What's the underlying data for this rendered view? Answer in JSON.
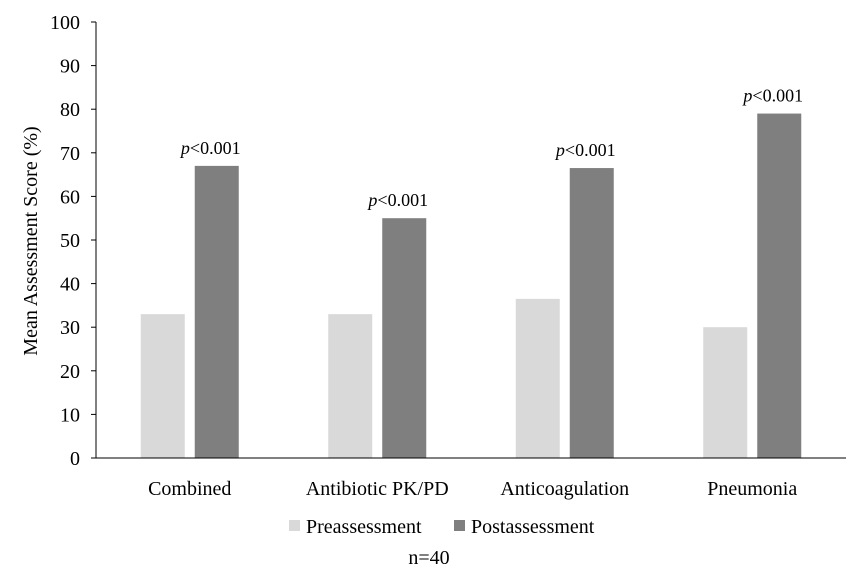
{
  "chart_data": {
    "type": "bar",
    "title": "",
    "xlabel": "",
    "ylabel": "Mean Assessment Score (%)",
    "ylim": [
      0,
      100
    ],
    "yticks": [
      0,
      10,
      20,
      30,
      40,
      50,
      60,
      70,
      80,
      90,
      100
    ],
    "categories": [
      "Combined",
      "Antibiotic PK/PD",
      "Anticoagulation",
      "Pneumonia"
    ],
    "series": [
      {
        "name": "Preassessment",
        "color": "#d9d9d9",
        "values": [
          33,
          33,
          36.5,
          30
        ]
      },
      {
        "name": "Postassessment",
        "color": "#7f7f7f",
        "values": [
          67,
          55,
          66.5,
          79
        ]
      }
    ],
    "annotations": [
      {
        "italic": "p",
        "rest": "<0.001"
      },
      {
        "italic": "p",
        "rest": "<0.001"
      },
      {
        "italic": "p",
        "rest": "<0.001"
      },
      {
        "italic": "p",
        "rest": "<0.001"
      }
    ],
    "legend": {
      "position": "bottom"
    },
    "note": "n=40",
    "grid": false
  }
}
